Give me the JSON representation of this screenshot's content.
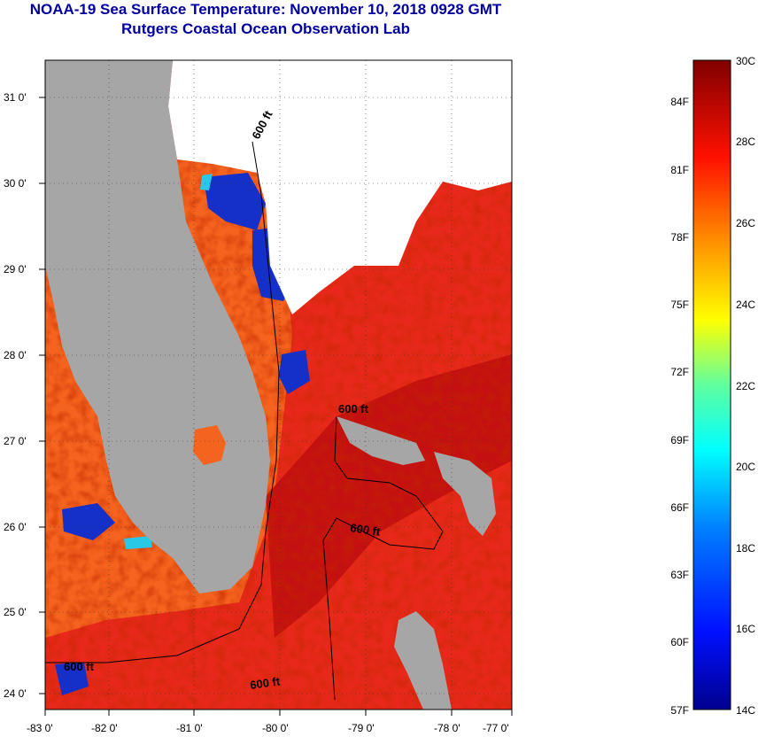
{
  "title": {
    "line1": "NOAA-19 Sea Surface Temperature:  November 10, 2018 0928 GMT",
    "line2": "Rutgers Coastal Ocean Observation Lab"
  },
  "map": {
    "lat_labels": [
      "31 0'",
      "30 0'",
      "29 0'",
      "28 0'",
      "27 0'",
      "26 0'",
      "25 0'",
      "24 0'"
    ],
    "lon_labels": [
      "-83 0'",
      "-82 0'",
      "-81 0'",
      "-80 0'",
      "-79 0'",
      "-78 0'",
      "-77 0'"
    ],
    "contour_labels": [
      "600 ft",
      "600 ft",
      "600 ft",
      "600 ft",
      "600 ft"
    ],
    "colors": {
      "land": "#a6a6a6",
      "cloud": "#ffffff",
      "warm_sea": "#e8281a",
      "hot_sea": "#c41010",
      "orange_sea": "#f5641e",
      "cold_sea": "#1430c8",
      "cyan_sea": "#28c8e6"
    }
  },
  "colorbar": {
    "fahrenheit": [
      "84F",
      "81F",
      "78F",
      "75F",
      "72F",
      "69F",
      "66F",
      "63F",
      "60F",
      "57F"
    ],
    "celsius": [
      "30C",
      "28C",
      "26C",
      "24C",
      "22C",
      "20C",
      "18C",
      "16C",
      "14C"
    ]
  }
}
